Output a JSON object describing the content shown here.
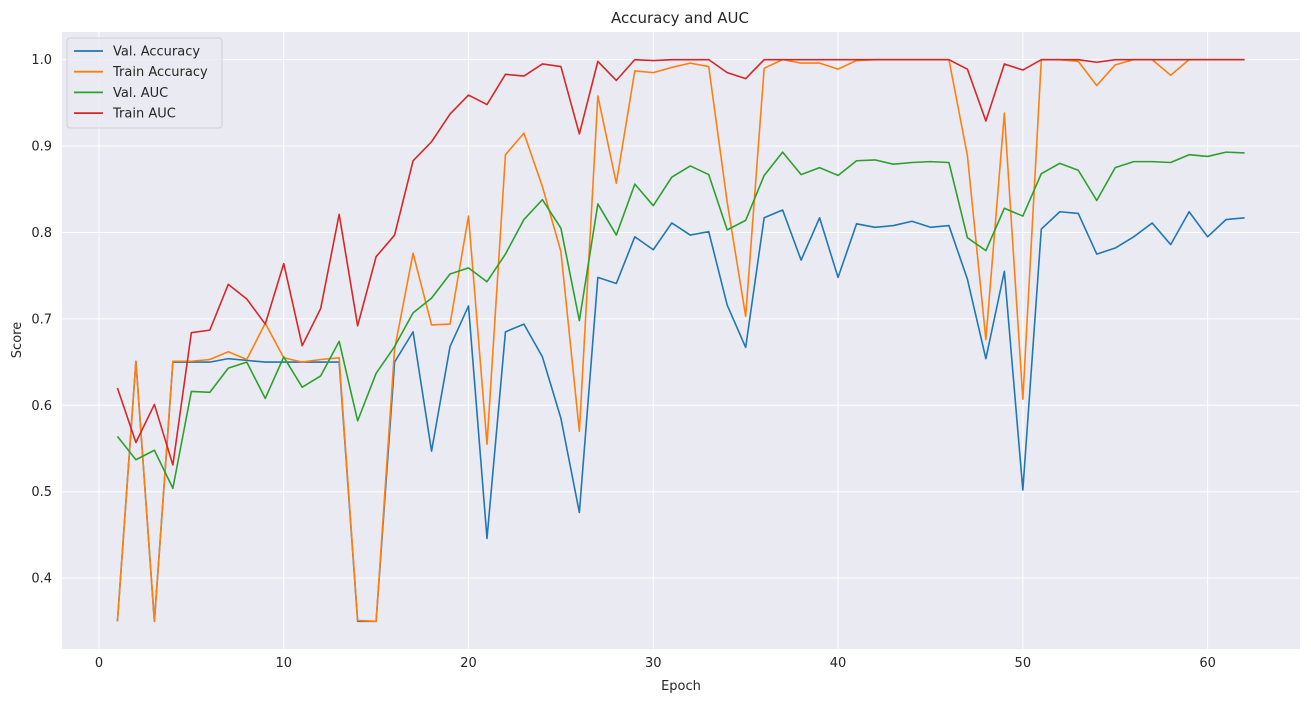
{
  "chart_data": {
    "type": "line",
    "title": "Accuracy and AUC",
    "xlabel": "Epoch",
    "ylabel": "Score",
    "xlim": [
      -2,
      65
    ],
    "ylim": [
      0.318,
      1.032
    ],
    "xticks": [
      0,
      10,
      20,
      30,
      40,
      50,
      60
    ],
    "yticks": [
      0.4,
      0.5,
      0.6,
      0.7,
      0.8,
      0.9,
      1.0
    ],
    "ytick_labels": [
      "0.4",
      "0.5",
      "0.6",
      "0.7",
      "0.8",
      "0.9",
      "1.0"
    ],
    "grid": true,
    "legend_position": "top-left",
    "background": "#eaeaf2",
    "x": [
      1,
      2,
      3,
      4,
      5,
      6,
      7,
      8,
      9,
      10,
      11,
      12,
      13,
      14,
      15,
      16,
      17,
      18,
      19,
      20,
      21,
      22,
      23,
      24,
      25,
      26,
      27,
      28,
      29,
      30,
      31,
      32,
      33,
      34,
      35,
      36,
      37,
      38,
      39,
      40,
      41,
      42,
      43,
      44,
      45,
      46,
      47,
      48,
      49,
      50,
      51,
      52,
      53,
      54,
      55,
      56,
      57,
      58,
      59,
      60,
      61,
      62
    ],
    "series": [
      {
        "name": "Val. Accuracy",
        "color": "#1f77b4",
        "values": [
          0.35,
          0.651,
          0.35,
          0.65,
          0.65,
          0.65,
          0.654,
          0.652,
          0.65,
          0.65,
          0.65,
          0.65,
          0.65,
          0.35,
          0.35,
          0.65,
          0.685,
          0.547,
          0.668,
          0.715,
          0.446,
          0.685,
          0.694,
          0.656,
          0.585,
          0.476,
          0.748,
          0.741,
          0.795,
          0.78,
          0.811,
          0.797,
          0.801,
          0.716,
          0.667,
          0.817,
          0.826,
          0.768,
          0.817,
          0.748,
          0.81,
          0.806,
          0.808,
          0.813,
          0.806,
          0.808,
          0.746,
          0.654,
          0.755,
          0.502,
          0.804,
          0.824,
          0.822,
          0.775,
          0.782,
          0.795,
          0.811,
          0.786,
          0.824,
          0.795,
          0.815,
          0.817
        ]
      },
      {
        "name": "Train Accuracy",
        "color": "#ff7f0e",
        "values": [
          0.35,
          0.651,
          0.35,
          0.651,
          0.651,
          0.653,
          0.662,
          0.653,
          0.695,
          0.655,
          0.65,
          0.653,
          0.655,
          0.351,
          0.35,
          0.665,
          0.776,
          0.693,
          0.694,
          0.819,
          0.555,
          0.89,
          0.915,
          0.853,
          0.778,
          0.57,
          0.958,
          0.857,
          0.987,
          0.985,
          0.991,
          0.996,
          0.992,
          0.835,
          0.703,
          0.99,
          1.0,
          0.996,
          0.996,
          0.989,
          0.999,
          1.0,
          1.0,
          1.0,
          1.0,
          1.0,
          0.889,
          0.676,
          0.938,
          0.607,
          1.0,
          1.0,
          0.998,
          0.97,
          0.994,
          1.0,
          1.0,
          0.982,
          1.0,
          1.0,
          1.0,
          1.0
        ]
      },
      {
        "name": "Val. AUC",
        "color": "#2ca02c",
        "values": [
          0.564,
          0.537,
          0.548,
          0.504,
          0.616,
          0.615,
          0.643,
          0.65,
          0.608,
          0.656,
          0.621,
          0.634,
          0.674,
          0.582,
          0.637,
          0.668,
          0.707,
          0.724,
          0.752,
          0.759,
          0.743,
          0.775,
          0.815,
          0.838,
          0.805,
          0.698,
          0.833,
          0.797,
          0.856,
          0.831,
          0.864,
          0.877,
          0.867,
          0.803,
          0.814,
          0.866,
          0.893,
          0.867,
          0.875,
          0.866,
          0.883,
          0.884,
          0.879,
          0.881,
          0.882,
          0.881,
          0.794,
          0.779,
          0.828,
          0.819,
          0.868,
          0.88,
          0.872,
          0.837,
          0.875,
          0.882,
          0.882,
          0.881,
          0.89,
          0.888,
          0.893,
          0.892
        ]
      },
      {
        "name": "Train AUC",
        "color": "#d62728",
        "values": [
          0.62,
          0.557,
          0.601,
          0.531,
          0.684,
          0.687,
          0.74,
          0.723,
          0.694,
          0.764,
          0.669,
          0.712,
          0.821,
          0.692,
          0.772,
          0.797,
          0.883,
          0.905,
          0.937,
          0.959,
          0.948,
          0.983,
          0.981,
          0.995,
          0.992,
          0.914,
          0.998,
          0.976,
          1.0,
          0.999,
          1.0,
          1.0,
          1.0,
          0.985,
          0.978,
          1.0,
          1.0,
          1.0,
          1.0,
          1.0,
          1.0,
          1.0,
          1.0,
          1.0,
          1.0,
          1.0,
          0.989,
          0.929,
          0.995,
          0.988,
          1.0,
          1.0,
          1.0,
          0.997,
          1.0,
          1.0,
          1.0,
          1.0,
          1.0,
          1.0,
          1.0,
          1.0
        ]
      }
    ]
  }
}
